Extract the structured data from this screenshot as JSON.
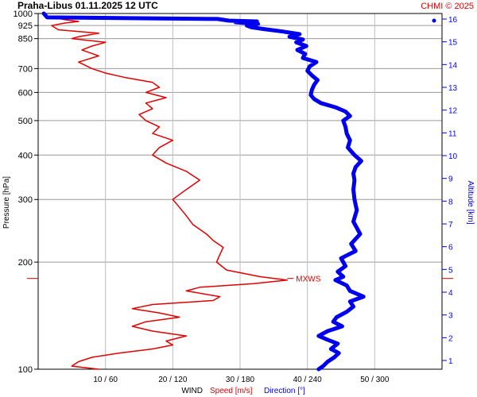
{
  "chart_data": {
    "type": "line",
    "title": "Praha-Libus    01.11.2025 12 UTC",
    "copyright": "CHMI © 2025",
    "ylabel_left": "Pressure [hPa]",
    "ylabel_right": "Altitude [km]",
    "pressure_scale": "log",
    "pressure_range": [
      1000,
      100
    ],
    "altitude_range": [
      0,
      16
    ],
    "grid": true,
    "pressure_ticks": [
      1000,
      925,
      850,
      700,
      600,
      500,
      400,
      300,
      200,
      100
    ],
    "altitude_ticks": [
      1,
      2,
      3,
      4,
      5,
      6,
      7,
      8,
      9,
      10,
      11,
      12,
      13,
      14,
      15,
      16
    ],
    "x_ticks": [
      {
        "speed": 10,
        "direction": 60,
        "label": "10 / 60"
      },
      {
        "speed": 20,
        "direction": 120,
        "label": "20 / 120"
      },
      {
        "speed": 30,
        "direction": 180,
        "label": "30 / 180"
      },
      {
        "speed": 40,
        "direction": 240,
        "label": "40 / 240"
      },
      {
        "speed": 50,
        "direction": 300,
        "label": "50 / 300"
      }
    ],
    "x_range_speed": [
      0,
      60
    ],
    "xlabel_prefix": "WIND",
    "legend": [
      {
        "label": "Speed [m/s]",
        "color": "#e00000"
      },
      {
        "label": "Direction [°]",
        "color": "#0000ee"
      }
    ],
    "max_wind_label": "MXWS",
    "max_wind_pressure": 180,
    "series": [
      {
        "key": "speed",
        "unit": "m/s",
        "color": "#e00000",
        "points": [
          [
            1000,
            1.0
          ],
          [
            980,
            1.5
          ],
          [
            960,
            4.0
          ],
          [
            950,
            6.0
          ],
          [
            940,
            4.0
          ],
          [
            925,
            2.0
          ],
          [
            900,
            3.0
          ],
          [
            880,
            9.0
          ],
          [
            860,
            6.0
          ],
          [
            850,
            5.0
          ],
          [
            830,
            10.0
          ],
          [
            810,
            8.0
          ],
          [
            790,
            6.5
          ],
          [
            760,
            9.0
          ],
          [
            730,
            6.0
          ],
          [
            700,
            8.0
          ],
          [
            680,
            10.0
          ],
          [
            660,
            13.0
          ],
          [
            640,
            17.0
          ],
          [
            620,
            18.0
          ],
          [
            600,
            16.0
          ],
          [
            580,
            19.0
          ],
          [
            560,
            16.0
          ],
          [
            540,
            17.0
          ],
          [
            520,
            15.0
          ],
          [
            500,
            16.0
          ],
          [
            480,
            18.0
          ],
          [
            460,
            17.0
          ],
          [
            440,
            20.0
          ],
          [
            420,
            18.0
          ],
          [
            400,
            17.0
          ],
          [
            380,
            19.0
          ],
          [
            360,
            22.0
          ],
          [
            340,
            24.0
          ],
          [
            320,
            22.0
          ],
          [
            300,
            20.0
          ],
          [
            285,
            21.0
          ],
          [
            270,
            22.0
          ],
          [
            255,
            23.0
          ],
          [
            240,
            25.0
          ],
          [
            230,
            26.0
          ],
          [
            220,
            27.5
          ],
          [
            210,
            27.0
          ],
          [
            200,
            26.5
          ],
          [
            190,
            28.0
          ],
          [
            182,
            33.0
          ],
          [
            178,
            37.0
          ],
          [
            174,
            32.0
          ],
          [
            170,
            24.0
          ],
          [
            166,
            22.0
          ],
          [
            160,
            27.0
          ],
          [
            156,
            26.0
          ],
          [
            152,
            17.0
          ],
          [
            148,
            14.0
          ],
          [
            144,
            18.0
          ],
          [
            140,
            21.0
          ],
          [
            136,
            16.0
          ],
          [
            132,
            14.0
          ],
          [
            128,
            17.0
          ],
          [
            124,
            22.0
          ],
          [
            120,
            19.0
          ],
          [
            117,
            20.0
          ],
          [
            114,
            17.0
          ],
          [
            111,
            12.0
          ],
          [
            108,
            8.0
          ],
          [
            105,
            6.0
          ],
          [
            102,
            5.0
          ],
          [
            100,
            9.0
          ]
        ]
      },
      {
        "key": "direction",
        "unit": "°",
        "color": "#0000ee",
        "points": [
          [
            1000,
            5
          ],
          [
            975,
            8
          ],
          [
            965,
            160
          ],
          [
            955,
            170
          ],
          [
            950,
            195
          ],
          [
            945,
            176
          ],
          [
            935,
            196
          ],
          [
            925,
            186
          ],
          [
            915,
            190
          ],
          [
            905,
            200
          ],
          [
            890,
            218
          ],
          [
            875,
            233
          ],
          [
            860,
            224
          ],
          [
            845,
            236
          ],
          [
            830,
            230
          ],
          [
            810,
            239
          ],
          [
            790,
            231
          ],
          [
            770,
            238
          ],
          [
            750,
            236
          ],
          [
            730,
            248
          ],
          [
            710,
            242
          ],
          [
            690,
            240
          ],
          [
            670,
            244
          ],
          [
            650,
            249
          ],
          [
            630,
            246
          ],
          [
            610,
            244
          ],
          [
            590,
            243
          ],
          [
            575,
            246
          ],
          [
            560,
            252
          ],
          [
            545,
            265
          ],
          [
            530,
            274
          ],
          [
            515,
            278
          ],
          [
            500,
            272
          ],
          [
            480,
            274
          ],
          [
            460,
            275
          ],
          [
            440,
            278
          ],
          [
            420,
            276
          ],
          [
            400,
            282
          ],
          [
            385,
            288
          ],
          [
            370,
            283
          ],
          [
            355,
            281
          ],
          [
            340,
            282
          ],
          [
            320,
            281
          ],
          [
            300,
            282
          ],
          [
            280,
            284
          ],
          [
            260,
            281
          ],
          [
            240,
            287
          ],
          [
            225,
            279
          ],
          [
            215,
            283
          ],
          [
            205,
            270
          ],
          [
            195,
            274
          ],
          [
            188,
            267
          ],
          [
            182,
            272
          ],
          [
            178,
            265
          ],
          [
            172,
            275
          ],
          [
            166,
            278
          ],
          [
            160,
            290
          ],
          [
            155,
            278
          ],
          [
            150,
            281
          ],
          [
            145,
            275
          ],
          [
            140,
            266
          ],
          [
            136,
            263
          ],
          [
            132,
            271
          ],
          [
            128,
            258
          ],
          [
            124,
            250
          ],
          [
            121,
            258
          ],
          [
            118,
            267
          ],
          [
            114,
            261
          ],
          [
            111,
            268
          ],
          [
            108,
            264
          ],
          [
            105,
            258
          ],
          [
            102,
            254
          ],
          [
            100,
            250
          ]
        ]
      }
    ]
  }
}
